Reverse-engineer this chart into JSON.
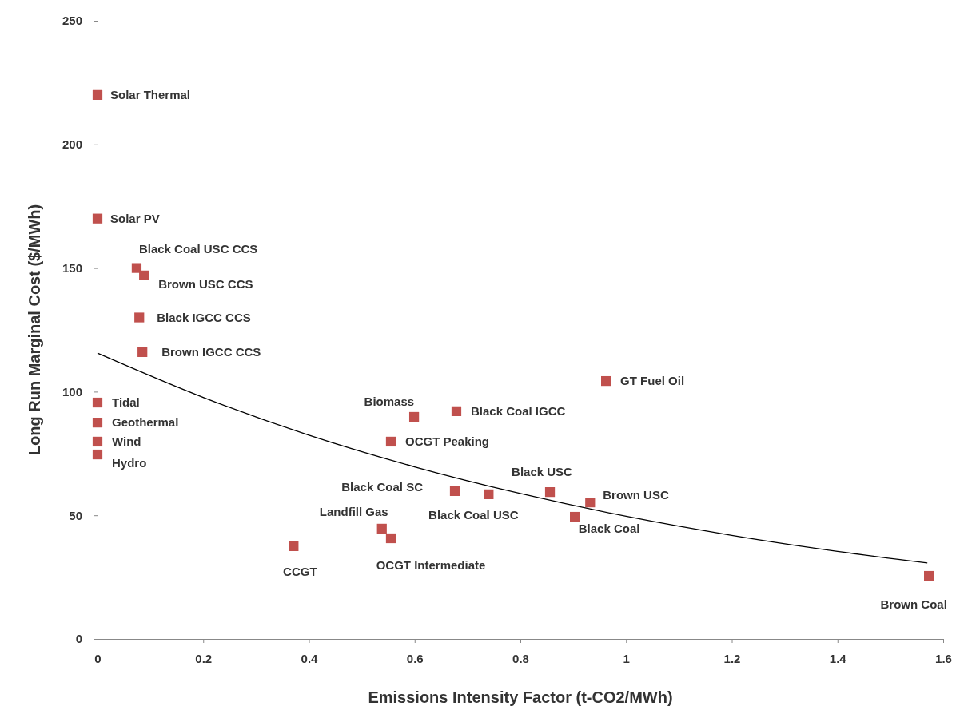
{
  "chart_data": {
    "type": "scatter",
    "xlabel": "Emissions Intensity Factor (t-CO2/MWh)",
    "ylabel": "Long Run Marginal Cost ($/MWh)",
    "xlim": [
      0,
      1.6
    ],
    "xticks": [
      0,
      0.2,
      0.4,
      0.6,
      0.8,
      1,
      1.2,
      1.4,
      1.6
    ],
    "ylim": [
      0,
      250
    ],
    "yticks": [
      0,
      50,
      100,
      150,
      200,
      250
    ],
    "grid": false,
    "marker": "square",
    "series": [
      {
        "color": "#c0504d",
        "x": [
          0,
          0,
          0.074,
          0.088,
          0.079,
          0.085,
          0,
          0,
          0,
          0,
          0.962,
          0.599,
          0.679,
          0.555,
          0.676,
          0.74,
          0.856,
          0.932,
          0.903,
          0.538,
          0.555,
          0.371,
          1.573
        ],
        "values": [
          220,
          170,
          150,
          147,
          130,
          116,
          95.6,
          87.5,
          79.8,
          74.6,
          104.3,
          89.8,
          92.1,
          79.8,
          59.8,
          58.5,
          59.4,
          55.2,
          49.4,
          44.6,
          40.7,
          37.5,
          25.5
        ]
      },
      {
        "type": "line",
        "color": "#000000",
        "marker": "none",
        "line_style": "solid",
        "x": [
          0,
          0.2,
          0.4,
          0.6,
          0.8,
          1,
          1.2,
          1.4,
          1.57
        ],
        "values": [
          115.6,
          97.7,
          82.4,
          69.6,
          58.8,
          49.6,
          41.9,
          35.4,
          30.7
        ]
      }
    ],
    "annotations": [
      {
        "text": "Solar Thermal",
        "x": 0,
        "y": 220
      },
      {
        "text": "Solar PV",
        "x": 0,
        "y": 170
      },
      {
        "text": "Black Coal USC CCS",
        "x": 0.074,
        "y": 150
      },
      {
        "text": "Brown USC CCS",
        "x": 0.088,
        "y": 147
      },
      {
        "text": "Black IGCC CCS",
        "x": 0.079,
        "y": 130
      },
      {
        "text": "Brown IGCC CCS",
        "x": 0.085,
        "y": 116
      },
      {
        "text": "Tidal",
        "x": 0,
        "y": 95.6
      },
      {
        "text": "Geothermal",
        "x": 0,
        "y": 87.5
      },
      {
        "text": "Wind",
        "x": 0,
        "y": 79.8
      },
      {
        "text": "Hydro",
        "x": 0,
        "y": 74.6
      },
      {
        "text": "GT Fuel Oil",
        "x": 0.962,
        "y": 104.3
      },
      {
        "text": "Biomass",
        "x": 0.599,
        "y": 89.8
      },
      {
        "text": "Black Coal IGCC",
        "x": 0.679,
        "y": 92.1
      },
      {
        "text": "OCGT Peaking",
        "x": 0.555,
        "y": 79.8
      },
      {
        "text": "Black Coal SC",
        "x": 0.676,
        "y": 59.8
      },
      {
        "text": "Black Coal USC",
        "x": 0.74,
        "y": 58.5
      },
      {
        "text": "Black USC",
        "x": 0.856,
        "y": 59.4
      },
      {
        "text": "Brown USC",
        "x": 0.932,
        "y": 55.2
      },
      {
        "text": "Black Coal",
        "x": 0.903,
        "y": 49.4
      },
      {
        "text": "Landfill Gas",
        "x": 0.538,
        "y": 44.6
      },
      {
        "text": "OCGT Intermediate",
        "x": 0.555,
        "y": 40.7
      },
      {
        "text": "CCGT",
        "x": 0.371,
        "y": 37.5
      },
      {
        "text": "Brown Coal",
        "x": 1.573,
        "y": 25.5
      }
    ]
  }
}
